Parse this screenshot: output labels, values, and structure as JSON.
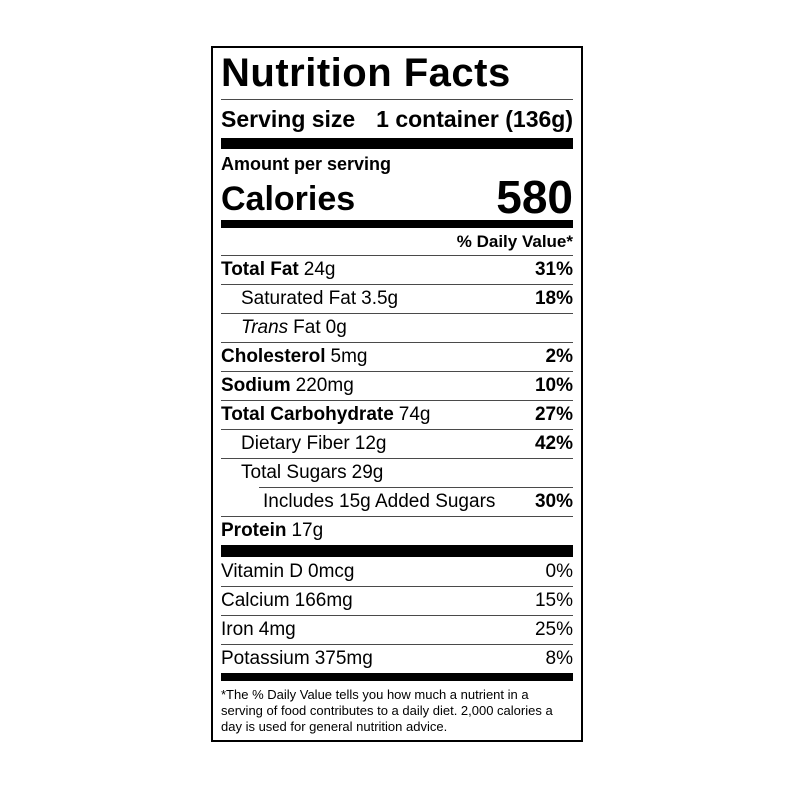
{
  "label": {
    "title": "Nutrition Facts",
    "serving": {
      "label": "Serving size",
      "value": "1 container (136g)"
    },
    "amount_per_serving": "Amount per serving",
    "calories": {
      "label": "Calories",
      "value": "580"
    },
    "daily_value_header": "% Daily Value*",
    "nutrients": [
      {
        "name": "Total Fat",
        "amount": "24g",
        "dv": "31%"
      },
      {
        "name": "Saturated Fat",
        "amount": "3.5g",
        "dv": "18%"
      },
      {
        "name_italic": "Trans",
        "name": "Fat",
        "amount": "0g",
        "dv": ""
      },
      {
        "name": "Cholesterol",
        "amount": "5mg",
        "dv": "2%"
      },
      {
        "name": "Sodium",
        "amount": "220mg",
        "dv": "10%"
      },
      {
        "name": "Total Carbohydrate",
        "amount": "74g",
        "dv": "27%"
      },
      {
        "name": "Dietary Fiber",
        "amount": "12g",
        "dv": "42%"
      },
      {
        "name": "Total Sugars",
        "amount": "29g",
        "dv": ""
      },
      {
        "name": "Includes 15g Added Sugars",
        "amount": "",
        "dv": "30%"
      },
      {
        "name": "Protein",
        "amount": "17g",
        "dv": ""
      }
    ],
    "vitamins": [
      {
        "name": "Vitamin D",
        "amount": "0mcg",
        "dv": "0%"
      },
      {
        "name": "Calcium",
        "amount": "166mg",
        "dv": "15%"
      },
      {
        "name": "Iron",
        "amount": "4mg",
        "dv": "25%"
      },
      {
        "name": "Potassium",
        "amount": "375mg",
        "dv": "8%"
      }
    ],
    "footnote": "*The % Daily Value tells you how much a nutrient in a serving of food contributes to a daily diet. 2,000 calories a day is used for general nutrition advice.",
    "colors": {
      "text": "#000000",
      "background": "#ffffff",
      "hairline": "#4a4a4a"
    }
  }
}
